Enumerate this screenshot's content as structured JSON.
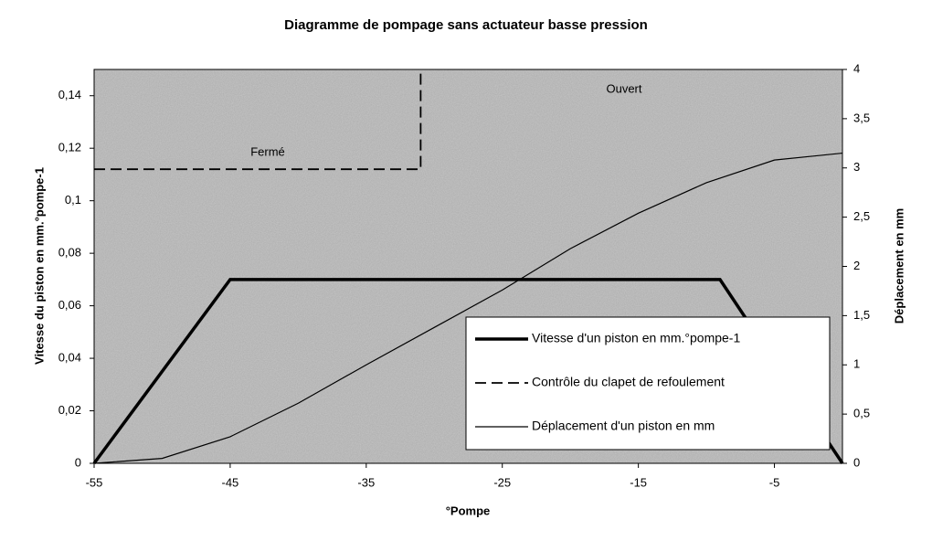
{
  "chart_data": {
    "type": "line",
    "title": "Diagramme de pompage sans actuateur basse pression",
    "x_label": "°Pompe",
    "y_label": "Vitesse du piston en mm.°pompe-1",
    "y2_label": "Déplacement en mm",
    "xlim": [
      -55,
      0
    ],
    "xticks": [
      -55,
      -45,
      -35,
      -25,
      -15,
      -5
    ],
    "ylim": [
      0,
      0.15
    ],
    "yticks": [
      0,
      {
        "value": 0.02,
        "label": "0,02"
      },
      {
        "value": 0.04,
        "label": "0,04"
      },
      {
        "value": 0.06,
        "label": "0,06"
      },
      {
        "value": 0.08,
        "label": "0,08"
      },
      {
        "value": 0.1,
        "label": "0,1"
      },
      {
        "value": 0.12,
        "label": "0,12"
      },
      {
        "value": 0.14,
        "label": "0,14"
      }
    ],
    "y2lim": [
      0,
      4
    ],
    "y2ticks": [
      0,
      {
        "value": 0.5,
        "label": "0,5"
      },
      1,
      {
        "value": 1.5,
        "label": "1,5"
      },
      2,
      {
        "value": 2.5,
        "label": "2,5"
      },
      3,
      {
        "value": 3.5,
        "label": "3,5"
      },
      4
    ],
    "legend": "lower-right",
    "series": [
      {
        "name": "Vitesse d'un piston en mm.°pompe-1",
        "color": "#000000",
        "style": "solid",
        "width": 3.5,
        "x": [
          -55,
          -45,
          -9,
          0
        ],
        "values": [
          0,
          0.07,
          0.07,
          0
        ]
      },
      {
        "name": "Contrôle du clapet de refoulement",
        "color": "#000000",
        "style": "dashed",
        "width": 1.8,
        "x": [
          -55,
          -31,
          -31
        ],
        "values": [
          0.112,
          0.112,
          0.15
        ]
      },
      {
        "name": "Déplacement d'un piston en mm",
        "color": "#000000",
        "style": "solid",
        "width": 1.2,
        "axis": "y2",
        "x": [
          -55,
          -50,
          -45,
          -40,
          -35,
          -30,
          -25,
          -20,
          -15,
          -10,
          -5,
          0
        ],
        "values": [
          0,
          0.05,
          0.27,
          0.61,
          1.0,
          1.38,
          1.76,
          2.18,
          2.54,
          2.85,
          3.08,
          3.15
        ]
      }
    ],
    "annotations": [
      "Fermé",
      "Ouvert"
    ]
  }
}
